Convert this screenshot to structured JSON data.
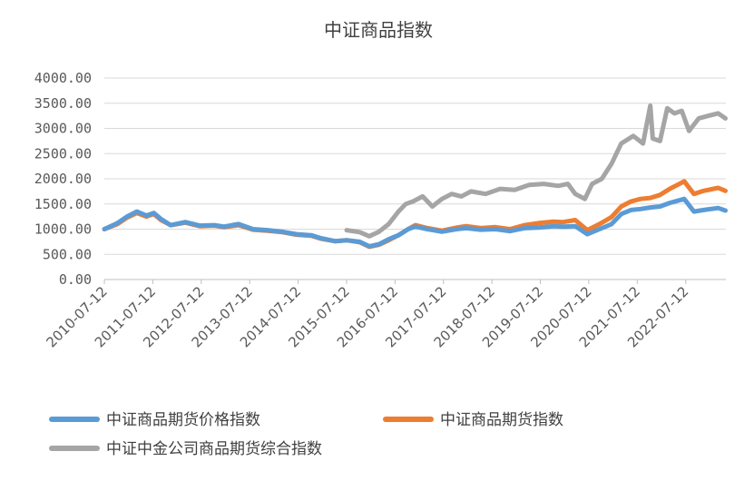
{
  "chart_data": {
    "type": "line",
    "title": "中证商品指数",
    "xlabel": "",
    "ylabel": "",
    "ylim": [
      0,
      4000
    ],
    "y_ticks": [
      "0.00",
      "500.00",
      "1000.00",
      "1500.00",
      "2000.00",
      "2500.00",
      "3000.00",
      "3500.00",
      "4000.00"
    ],
    "x_tick_labels": [
      "2010-07-12",
      "2011-07-12",
      "2012-07-12",
      "2013-07-12",
      "2014-07-12",
      "2015-07-12",
      "2016-07-12",
      "2017-07-12",
      "2018-07-12",
      "2019-07-12",
      "2020-07-12",
      "2021-07-12",
      "2022-07-12"
    ],
    "grid": "horizontal",
    "legend_position": "bottom",
    "series": [
      {
        "name": "中证商品期货价格指数",
        "color": "#5B9BD5",
        "x": [
          2010.53,
          2010.8,
          2011.0,
          2011.2,
          2011.4,
          2011.55,
          2011.7,
          2011.9,
          2012.2,
          2012.5,
          2012.8,
          2013.0,
          2013.3,
          2013.6,
          2013.9,
          2014.2,
          2014.5,
          2014.8,
          2015.0,
          2015.3,
          2015.53,
          2015.8,
          2016.0,
          2016.2,
          2016.4,
          2016.6,
          2016.8,
          2016.95,
          2017.2,
          2017.5,
          2017.8,
          2018.0,
          2018.3,
          2018.6,
          2018.9,
          2019.2,
          2019.5,
          2019.8,
          2020.0,
          2020.25,
          2020.5,
          2020.75,
          2021.0,
          2021.2,
          2021.4,
          2021.6,
          2021.8,
          2022.0,
          2022.2,
          2022.5,
          2022.7,
          2022.9,
          2023.2,
          2023.35
        ],
        "y": [
          1000,
          1120,
          1250,
          1350,
          1270,
          1320,
          1200,
          1080,
          1140,
          1070,
          1080,
          1050,
          1100,
          1000,
          980,
          950,
          900,
          880,
          820,
          760,
          780,
          750,
          660,
          700,
          800,
          880,
          1000,
          1050,
          1000,
          950,
          1000,
          1020,
          990,
          1000,
          960,
          1020,
          1030,
          1060,
          1050,
          1060,
          900,
          1000,
          1100,
          1300,
          1380,
          1400,
          1430,
          1450,
          1520,
          1600,
          1350,
          1380,
          1420,
          1370
        ]
      },
      {
        "name": "中证商品期货指数",
        "color": "#ED7D31",
        "x": [
          2010.53,
          2010.8,
          2011.0,
          2011.2,
          2011.4,
          2011.55,
          2011.7,
          2011.9,
          2012.2,
          2012.5,
          2012.8,
          2013.0,
          2013.3,
          2013.6,
          2013.9,
          2014.2,
          2014.5,
          2014.8,
          2015.0,
          2015.3,
          2015.53,
          2015.8,
          2016.0,
          2016.2,
          2016.4,
          2016.6,
          2016.8,
          2016.95,
          2017.2,
          2017.5,
          2017.8,
          2018.0,
          2018.3,
          2018.6,
          2018.9,
          2019.2,
          2019.5,
          2019.8,
          2020.0,
          2020.25,
          2020.5,
          2020.75,
          2021.0,
          2021.2,
          2021.4,
          2021.6,
          2021.8,
          2022.0,
          2022.2,
          2022.5,
          2022.7,
          2022.9,
          2023.2,
          2023.35
        ],
        "y": [
          1000,
          1100,
          1230,
          1320,
          1250,
          1300,
          1180,
          1080,
          1130,
          1060,
          1070,
          1040,
          1080,
          990,
          970,
          940,
          890,
          870,
          810,
          760,
          780,
          740,
          650,
          690,
          780,
          880,
          1000,
          1080,
          1020,
          970,
          1030,
          1060,
          1020,
          1040,
          1000,
          1080,
          1120,
          1150,
          1140,
          1180,
          980,
          1100,
          1240,
          1450,
          1550,
          1600,
          1620,
          1680,
          1800,
          1950,
          1700,
          1760,
          1820,
          1760
        ]
      },
      {
        "name": "中证中金公司商品期货综合指数",
        "color": "#A5A5A5",
        "x": [
          2015.53,
          2015.8,
          2016.0,
          2016.2,
          2016.4,
          2016.6,
          2016.75,
          2016.9,
          2017.1,
          2017.3,
          2017.5,
          2017.7,
          2017.9,
          2018.1,
          2018.4,
          2018.7,
          2019.0,
          2019.3,
          2019.6,
          2019.9,
          2020.1,
          2020.25,
          2020.45,
          2020.6,
          2020.8,
          2021.0,
          2021.2,
          2021.45,
          2021.65,
          2021.8,
          2021.85,
          2022.0,
          2022.15,
          2022.3,
          2022.45,
          2022.6,
          2022.8,
          2023.0,
          2023.2,
          2023.35
        ],
        "y": [
          980,
          940,
          860,
          950,
          1100,
          1350,
          1500,
          1550,
          1650,
          1450,
          1600,
          1700,
          1650,
          1750,
          1700,
          1800,
          1780,
          1880,
          1900,
          1860,
          1900,
          1700,
          1600,
          1900,
          2000,
          2300,
          2700,
          2850,
          2700,
          3450,
          2800,
          2750,
          3400,
          3300,
          3350,
          2950,
          3200,
          3250,
          3300,
          3200
        ]
      }
    ]
  }
}
